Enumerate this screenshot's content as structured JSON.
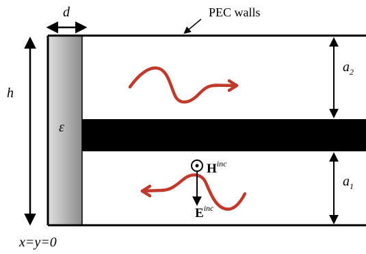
{
  "labels": {
    "pec_walls": "PEC walls",
    "d": "d",
    "h": "h",
    "epsilon": "ε",
    "a2_main": "a",
    "a2_sub": "2",
    "a1_main": "a",
    "a1_sub": "1",
    "origin": "x=y=0",
    "h_field": "H",
    "h_sup": "inc",
    "e_field": "E",
    "e_sup": "inc"
  },
  "colors": {
    "wave": "#c0392b",
    "strip": "#000000",
    "dielectric_light": "#d8d8d8",
    "dielectric_dark": "#8a8a8a"
  }
}
